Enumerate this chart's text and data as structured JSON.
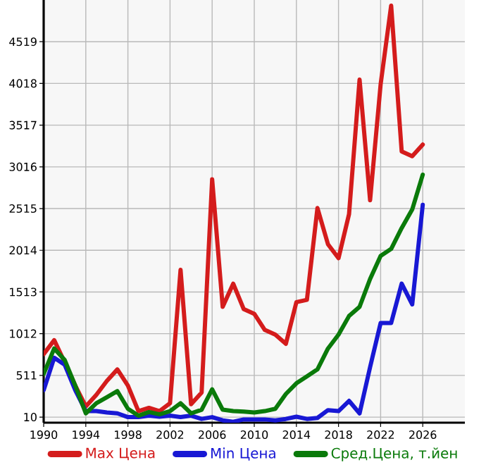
{
  "chart_data": {
    "type": "line",
    "x": [
      1990,
      1991,
      1992,
      1993,
      1994,
      1995,
      1996,
      1997,
      1998,
      1999,
      2000,
      2001,
      2002,
      2003,
      2004,
      2005,
      2006,
      2007,
      2008,
      2009,
      2010,
      2011,
      2012,
      2013,
      2014,
      2015,
      2016,
      2017,
      2018,
      2019,
      2020,
      2021,
      2022,
      2023,
      2024,
      2025,
      2026
    ],
    "series": [
      {
        "name": "Max Цена",
        "color": "#d41c1c",
        "values": [
          767,
          934,
          667,
          389,
          138,
          277,
          444,
          583,
          389,
          82,
          121,
          82,
          177,
          1780,
          166,
          305,
          2866,
          1335,
          1613,
          1307,
          1251,
          1057,
          1001,
          890,
          1391,
          1418,
          2521,
          2086,
          1919,
          2448,
          4063,
          2615,
          4007,
          4953,
          3200,
          3144,
          3283
        ]
      },
      {
        "name": "Min Цена",
        "color": "#1818d4",
        "values": [
          333,
          723,
          639,
          333,
          82,
          82,
          66,
          55,
          10,
          10,
          27,
          15,
          27,
          10,
          27,
          -12,
          10,
          -29,
          -46,
          -18,
          -18,
          -18,
          -29,
          -12,
          15,
          -12,
          0,
          94,
          82,
          205,
          55,
          611,
          1140,
          1140,
          1613,
          1363,
          2560
        ]
      },
      {
        "name": "Сред.Цена, т.йен",
        "color": "#0a7a0a",
        "values": [
          528,
          834,
          695,
          389,
          55,
          177,
          249,
          322,
          110,
          27,
          71,
          43,
          82,
          177,
          55,
          99,
          344,
          99,
          82,
          77,
          66,
          82,
          110,
          288,
          416,
          500,
          583,
          834,
          1001,
          1224,
          1335,
          1669,
          1947,
          2030,
          2281,
          2504,
          2922
        ]
      }
    ],
    "xlim": [
      1990,
      2030
    ],
    "xticks": [
      1990,
      1994,
      1998,
      2002,
      2006,
      2010,
      2014,
      2018,
      2022,
      2026
    ],
    "ylim": [
      -57,
      5020
    ],
    "yticks": [
      10,
      511,
      1012,
      1513,
      2014,
      2515,
      3016,
      3517,
      4018,
      4519
    ],
    "grid": true,
    "legend": "bottom",
    "marker": "none",
    "line_style": "solid"
  }
}
